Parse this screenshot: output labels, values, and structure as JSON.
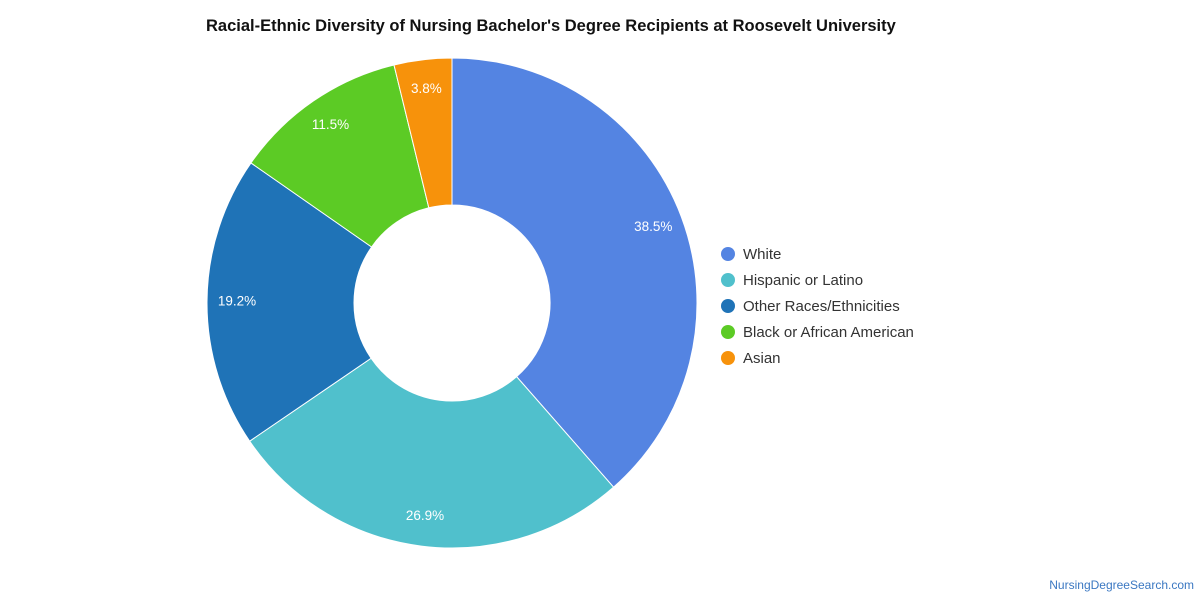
{
  "chart_data": {
    "type": "pie",
    "variant": "donut",
    "title": "Racial-Ethnic Diversity of Nursing Bachelor's Degree Recipients at Roosevelt University",
    "slices": [
      {
        "label": "White",
        "value": 38.5,
        "display": "38.5%",
        "color": "#5484e2"
      },
      {
        "label": "Hispanic or Latino",
        "value": 26.9,
        "display": "26.9%",
        "color": "#50c0cc"
      },
      {
        "label": "Other Races/Ethnicities",
        "value": 19.2,
        "display": "19.2%",
        "color": "#1f73b7"
      },
      {
        "label": "Black or African American",
        "value": 11.5,
        "display": "11.5%",
        "color": "#5ccb25"
      },
      {
        "label": "Asian",
        "value": 3.8,
        "display": "3.8%",
        "color": "#f7920b"
      }
    ],
    "legend_position": "right"
  },
  "watermark": "NursingDegreeSearch.com"
}
